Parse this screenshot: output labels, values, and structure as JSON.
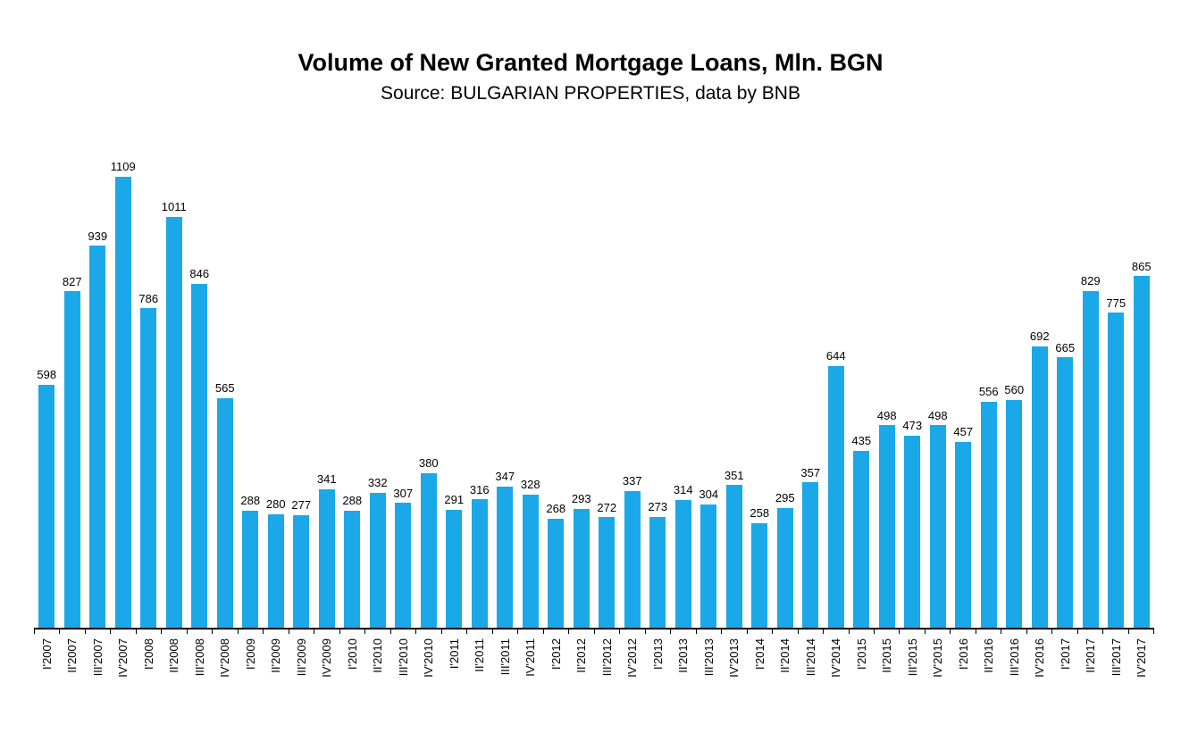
{
  "chart_data": {
    "type": "bar",
    "title": "Volume of New Granted Mortgage Loans, Mln. BGN",
    "subtitle": "Source: BULGARIAN PROPERTIES, data by BNB",
    "categories": [
      "I'2007",
      "II'2007",
      "III'2007",
      "IV'2007",
      "I'2008",
      "II'2008",
      "III'2008",
      "IV'2008",
      "I'2009",
      "II'2009",
      "III'2009",
      "IV'2009",
      "I'2010",
      "II'2010",
      "III'2010",
      "IV'2010",
      "I'2011",
      "II'2011",
      "III'2011",
      "IV'2011",
      "I'2012",
      "II'2012",
      "III'2012",
      "IV'2012",
      "I'2013",
      "II'2013",
      "III'2013",
      "IV'2013",
      "I'2014",
      "II'2014",
      "III'2014",
      "IV'2014",
      "I'2015",
      "II'2015",
      "III'2015",
      "IV'2015",
      "I'2016",
      "II'2016",
      "III'2016",
      "IV'2016",
      "I'2017",
      "II'2017",
      "III'2017",
      "IV'2017"
    ],
    "values": [
      598,
      827,
      939,
      1109,
      786,
      1011,
      846,
      565,
      288,
      280,
      277,
      341,
      288,
      332,
      307,
      380,
      291,
      316,
      347,
      328,
      268,
      293,
      272,
      337,
      273,
      314,
      304,
      351,
      258,
      295,
      357,
      644,
      435,
      498,
      473,
      498,
      457,
      556,
      560,
      692,
      665,
      829,
      775,
      865
    ],
    "value_labels_shown": true,
    "bar_color": "#1BA8E8",
    "axis_color": "#000000",
    "xlabel": "",
    "ylabel": "",
    "ylim": [
      0,
      1109
    ],
    "grid": "off",
    "legend": "none"
  }
}
